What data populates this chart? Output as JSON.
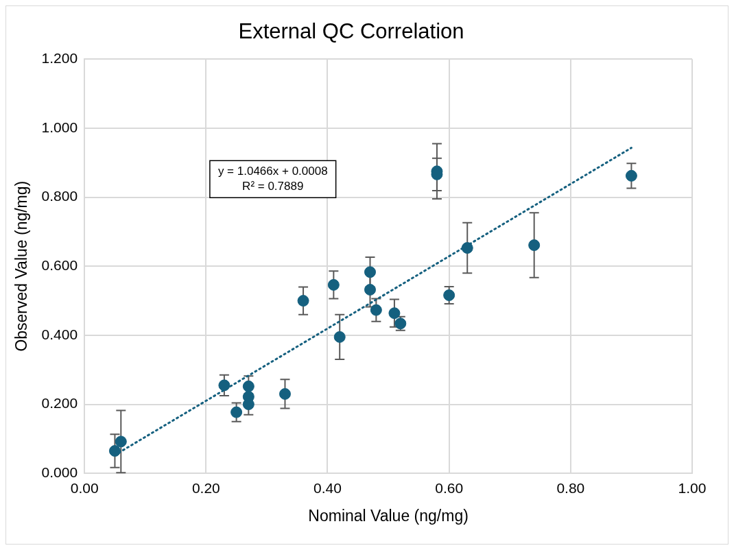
{
  "chart_data": {
    "type": "scatter",
    "title": "External QC Correlation",
    "xlabel": "Nominal Value (ng/mg)",
    "ylabel": "Observed Value (ng/mg)",
    "xlim": [
      0,
      1
    ],
    "xticks": [
      {
        "value": 0,
        "label": "0.00"
      },
      {
        "value": 0.2,
        "label": "0.20"
      },
      {
        "value": 0.4,
        "label": "0.40"
      },
      {
        "value": 0.6,
        "label": "0.60"
      },
      {
        "value": 0.8,
        "label": "0.80"
      },
      {
        "value": 1,
        "label": "1.00"
      }
    ],
    "ylim": [
      0,
      1.2
    ],
    "yticks": [
      {
        "value": 0,
        "label": "0.000"
      },
      {
        "value": 0.2,
        "label": "0.200"
      },
      {
        "value": 0.4,
        "label": "0.400"
      },
      {
        "value": 0.6,
        "label": "0.600"
      },
      {
        "value": 0.8,
        "label": "0.800"
      },
      {
        "value": 1,
        "label": "1.000"
      },
      {
        "value": 1.2,
        "label": "1.200"
      }
    ],
    "grid": true,
    "legend": false,
    "annotations": [
      "y = 1.0466x + 0.0008",
      "R² = 0.7889"
    ],
    "series": [
      {
        "type": "scatter",
        "color": "#15607f",
        "marker": "circle",
        "x": [
          0.05,
          0.06,
          0.23,
          0.25,
          0.27,
          0.27,
          0.27,
          0.33,
          0.36,
          0.41,
          0.42,
          0.47,
          0.47,
          0.48,
          0.51,
          0.52,
          0.58,
          0.58,
          0.6,
          0.63,
          0.74,
          0.9
        ],
        "values": [
          0.065,
          0.092,
          0.255,
          0.177,
          0.252,
          0.222,
          0.2,
          0.23,
          0.5,
          0.546,
          0.395,
          0.583,
          0.532,
          0.473,
          0.464,
          0.434,
          0.875,
          0.866,
          0.516,
          0.653,
          0.661,
          0.862
        ],
        "errors": [
          0.048,
          0.09,
          0.03,
          0.027,
          0.03,
          null,
          0.03,
          0.042,
          0.04,
          0.04,
          0.065,
          0.043,
          0.05,
          0.033,
          0.04,
          0.02,
          0.08,
          0.047,
          0.025,
          0.073,
          0.094,
          0.036
        ]
      },
      {
        "type": "line",
        "color": "#15607f",
        "marker": "none",
        "line_style": "dotted",
        "x": [
          0.05,
          0.9
        ],
        "values": [
          0.053,
          0.943
        ]
      }
    ]
  }
}
